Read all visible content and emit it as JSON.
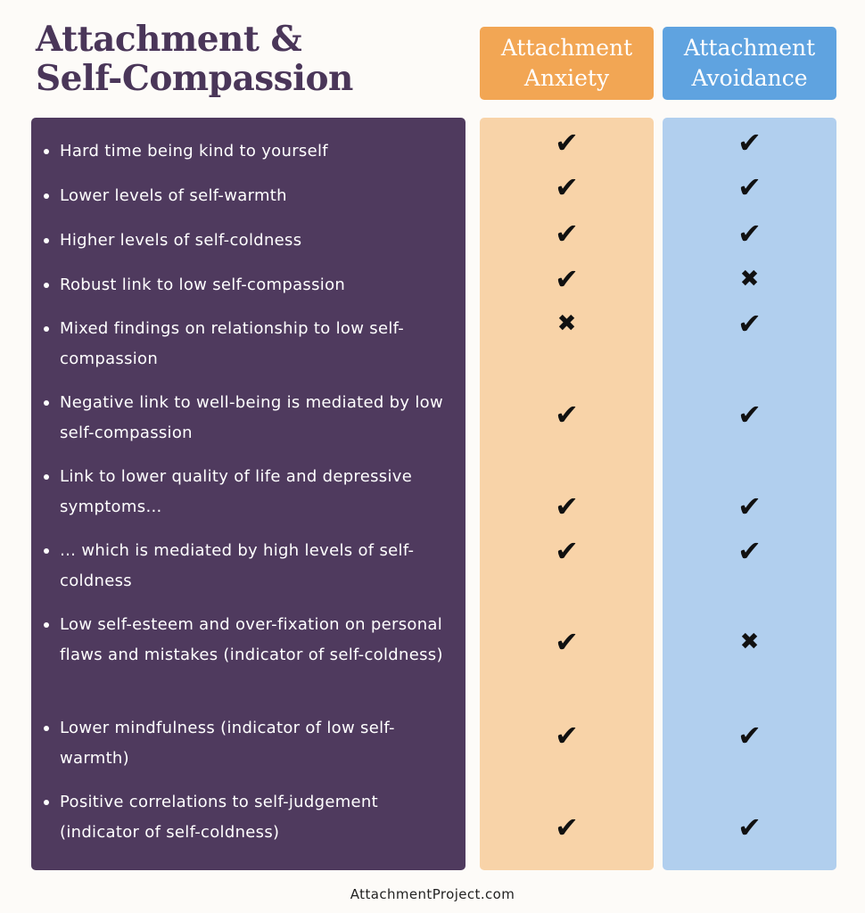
{
  "title_line1": "Attachment &",
  "title_line2": "Self-Compassion",
  "columns": {
    "anxiety": "Attachment Anxiety",
    "avoidance": "Attachment Avoidance"
  },
  "colors": {
    "panel": "#4f3a5e",
    "anxiety_header": "#f2a654",
    "anxiety_body": "#f8d3a8",
    "avoidance_header": "#5fa3e0",
    "avoidance_body": "#b1cfee"
  },
  "icons": {
    "yes": "check-icon",
    "no": "cross-icon"
  },
  "rows": [
    {
      "text": "Hard time being kind to yourself",
      "anxiety": true,
      "avoidance": true
    },
    {
      "text": "Lower levels of self-warmth",
      "anxiety": true,
      "avoidance": true
    },
    {
      "text": "Higher levels of self-coldness",
      "anxiety": true,
      "avoidance": true
    },
    {
      "text": "Robust link to low self-compassion",
      "anxiety": true,
      "avoidance": false
    },
    {
      "text": "Mixed findings on relationship to low self-compassion",
      "anxiety": false,
      "avoidance": true
    },
    {
      "text": "Negative link to well-being is mediated by low self-compassion",
      "anxiety": true,
      "avoidance": true
    },
    {
      "text": "Link to lower quality of life and depressive symptoms…",
      "anxiety": true,
      "avoidance": true
    },
    {
      "text": "… which is mediated by high levels of self-coldness",
      "anxiety": true,
      "avoidance": true
    },
    {
      "text": "Low self-esteem and over-fixation on personal flaws and mistakes (indicator of self-coldness)",
      "anxiety": true,
      "avoidance": false
    },
    {
      "text": "Lower mindfulness (indicator of low self-warmth)",
      "anxiety": true,
      "avoidance": true
    },
    {
      "text": "Positive correlations to self-judgement (indicator of self-coldness)",
      "anxiety": true,
      "avoidance": true
    }
  ],
  "footer": "AttachmentProject.com"
}
